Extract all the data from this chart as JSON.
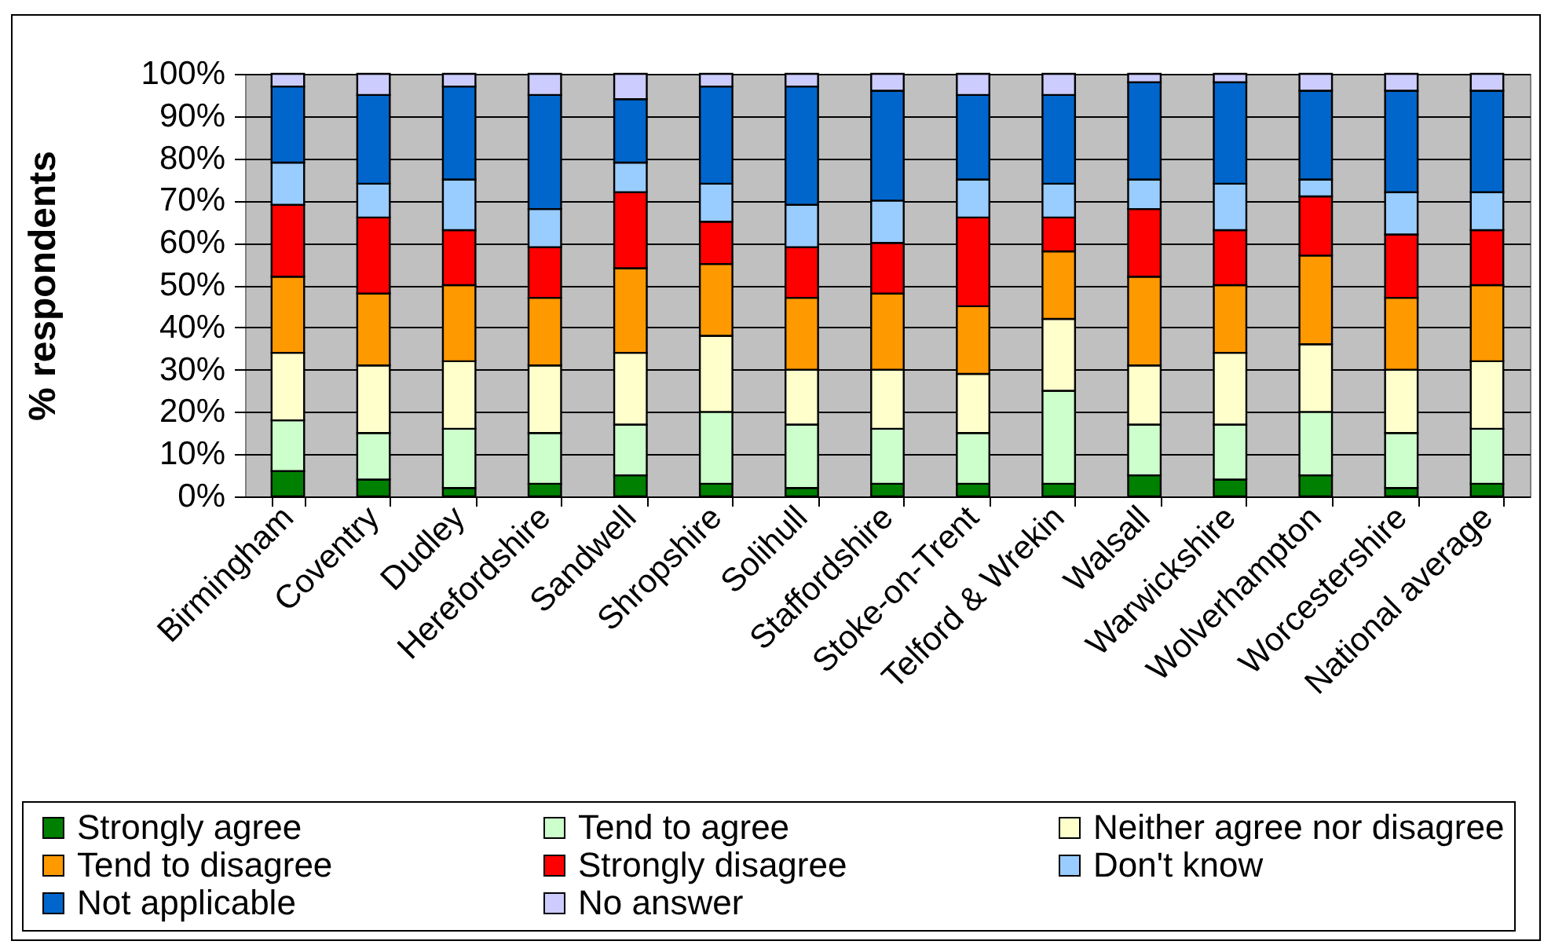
{
  "chart_data": {
    "type": "bar",
    "stacked": true,
    "ylabel": "% respondents",
    "categories": [
      "Birmingham",
      "Coventry",
      "Dudley",
      "Herefordshire",
      "Sandwell",
      "Shropshire",
      "Solihull",
      "Staffordshire",
      "Stoke-on-Trent",
      "Telford & Wrekin",
      "Walsall",
      "Warwickshire",
      "Wolverhampton",
      "Worcestershire",
      "National average"
    ],
    "series": [
      {
        "name": "Strongly agree",
        "color": "#008000",
        "values": [
          6,
          4,
          2,
          3,
          5,
          3,
          2,
          3,
          3,
          3,
          5,
          4,
          5,
          2,
          3
        ]
      },
      {
        "name": "Tend to agree",
        "color": "#ccffcc",
        "values": [
          12,
          11,
          14,
          12,
          12,
          17,
          15,
          13,
          12,
          22,
          12,
          13,
          15,
          13,
          13
        ]
      },
      {
        "name": "Neither agree nor disagree",
        "color": "#ffffcc",
        "values": [
          16,
          16,
          16,
          16,
          17,
          18,
          13,
          14,
          14,
          17,
          14,
          17,
          16,
          15,
          16
        ]
      },
      {
        "name": "Tend to disagree",
        "color": "#ff9900",
        "values": [
          18,
          17,
          18,
          16,
          20,
          17,
          17,
          18,
          16,
          16,
          21,
          16,
          21,
          17,
          18
        ]
      },
      {
        "name": "Strongly disagree",
        "color": "#ff0000",
        "values": [
          17,
          18,
          13,
          12,
          18,
          10,
          12,
          12,
          21,
          8,
          16,
          13,
          14,
          15,
          13
        ]
      },
      {
        "name": "Don't know",
        "color": "#99ccff",
        "values": [
          10,
          8,
          12,
          9,
          7,
          9,
          10,
          10,
          9,
          8,
          7,
          11,
          4,
          10,
          9
        ]
      },
      {
        "name": "Not applicable",
        "color": "#0066cc",
        "values": [
          18,
          21,
          22,
          27,
          15,
          23,
          28,
          26,
          20,
          21,
          23,
          24,
          21,
          24,
          24
        ]
      },
      {
        "name": "No answer",
        "color": "#ccccff",
        "values": [
          3,
          5,
          3,
          5,
          6,
          3,
          3,
          4,
          5,
          5,
          2,
          2,
          4,
          4,
          4
        ]
      }
    ],
    "ylim": [
      0,
      100
    ],
    "yticks": [
      {
        "value": 0,
        "label": "0%"
      },
      {
        "value": 10,
        "label": "10%"
      },
      {
        "value": 20,
        "label": "20%"
      },
      {
        "value": 30,
        "label": "30%"
      },
      {
        "value": 40,
        "label": "40%"
      },
      {
        "value": 50,
        "label": "50%"
      },
      {
        "value": 60,
        "label": "60%"
      },
      {
        "value": 70,
        "label": "70%"
      },
      {
        "value": 80,
        "label": "80%"
      },
      {
        "value": 90,
        "label": "90%"
      },
      {
        "value": 100,
        "label": "100%"
      }
    ],
    "grid": "y",
    "legend": "bottom"
  }
}
